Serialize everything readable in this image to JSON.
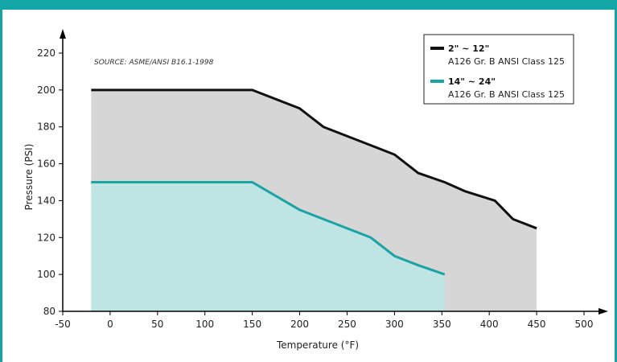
{
  "chart_data": {
    "type": "area",
    "title": "",
    "annotation": "SOURCE: ASME/ANSI B16.1-1998",
    "xlabel": "Temperature (°F)",
    "ylabel": "Pressure (PSI)",
    "xlim": [
      -50,
      500
    ],
    "ylim": [
      80,
      220
    ],
    "x_ticks": [
      -50,
      0,
      50,
      100,
      150,
      200,
      250,
      300,
      350,
      400,
      450,
      500
    ],
    "y_ticks": [
      80,
      100,
      120,
      140,
      160,
      180,
      200,
      220
    ],
    "grid": false,
    "legend_position": "top-right",
    "series": [
      {
        "name": "2\" ~ 12\"",
        "description": "A126 Gr. B ANSI Class 125",
        "color": "#111111",
        "fill": "#d6d6d6",
        "x": [
          -20,
          150,
          200,
          225,
          275,
          300,
          325,
          353,
          375,
          406,
          425,
          450
        ],
        "y": [
          200,
          200,
          190,
          180,
          170,
          165,
          155,
          150,
          145,
          140,
          130,
          125
        ]
      },
      {
        "name": "14\" ~ 24\"",
        "description": "A126 Gr. B ANSI Class 125",
        "color": "#1aa3a3",
        "fill": "#bfe4e4",
        "x": [
          -20,
          150,
          200,
          225,
          275,
          300,
          325,
          353
        ],
        "y": [
          150,
          150,
          135,
          130,
          120,
          110,
          105,
          100
        ]
      }
    ]
  }
}
